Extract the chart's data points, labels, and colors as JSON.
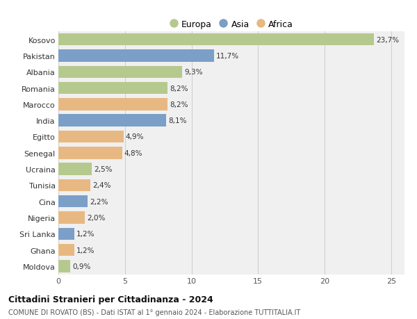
{
  "countries": [
    "Kosovo",
    "Pakistan",
    "Albania",
    "Romania",
    "Marocco",
    "India",
    "Egitto",
    "Senegal",
    "Ucraina",
    "Tunisia",
    "Cina",
    "Nigeria",
    "Sri Lanka",
    "Ghana",
    "Moldova"
  ],
  "values": [
    23.7,
    11.7,
    9.3,
    8.2,
    8.2,
    8.1,
    4.9,
    4.8,
    2.5,
    2.4,
    2.2,
    2.0,
    1.2,
    1.2,
    0.9
  ],
  "labels": [
    "23,7%",
    "11,7%",
    "9,3%",
    "8,2%",
    "8,2%",
    "8,1%",
    "4,9%",
    "4,8%",
    "2,5%",
    "2,4%",
    "2,2%",
    "2,0%",
    "1,2%",
    "1,2%",
    "0,9%"
  ],
  "continents": [
    "Europa",
    "Asia",
    "Europa",
    "Europa",
    "Africa",
    "Asia",
    "Africa",
    "Africa",
    "Europa",
    "Africa",
    "Asia",
    "Africa",
    "Asia",
    "Africa",
    "Europa"
  ],
  "colors": {
    "Europa": "#b5c98e",
    "Asia": "#7b9fc7",
    "Africa": "#e8b882"
  },
  "title": "Cittadini Stranieri per Cittadinanza - 2024",
  "subtitle": "COMUNE DI ROVATO (BS) - Dati ISTAT al 1° gennaio 2024 - Elaborazione TUTTITALIA.IT",
  "xlim": [
    0,
    26
  ],
  "xticks": [
    0,
    5,
    10,
    15,
    20,
    25
  ],
  "background_color": "#ffffff",
  "bar_background": "#f0f0f0",
  "grid_color": "#cccccc"
}
